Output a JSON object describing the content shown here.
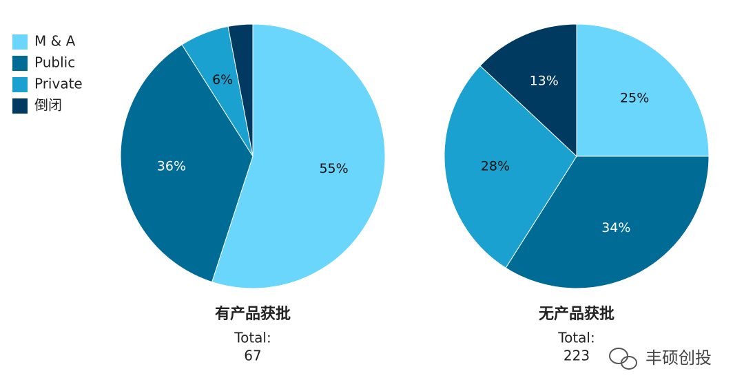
{
  "chart_data": [
    {
      "type": "pie",
      "title": "有产品获批",
      "total_label": "Total:",
      "total": 67,
      "categories": [
        "M & A",
        "Public",
        "Private",
        "倒闭"
      ],
      "values": [
        55,
        36,
        6,
        3
      ],
      "value_labels": [
        "55%",
        "36%",
        "6%",
        null
      ],
      "colors": [
        "#6ad6fc",
        "#006c96",
        "#1aa1cf",
        "#003a60"
      ],
      "legend": "top-left"
    },
    {
      "type": "pie",
      "title": "无产品获批",
      "total_label": "Total:",
      "total": 223,
      "categories": [
        "M & A",
        "Public",
        "Private",
        "倒闭"
      ],
      "values": [
        25,
        34,
        28,
        13
      ],
      "value_labels": [
        "25%",
        "34%",
        "28%",
        "13%"
      ],
      "colors": [
        "#6ad6fc",
        "#006c96",
        "#1aa1cf",
        "#003a60"
      ]
    }
  ],
  "watermark": "丰硕创投"
}
